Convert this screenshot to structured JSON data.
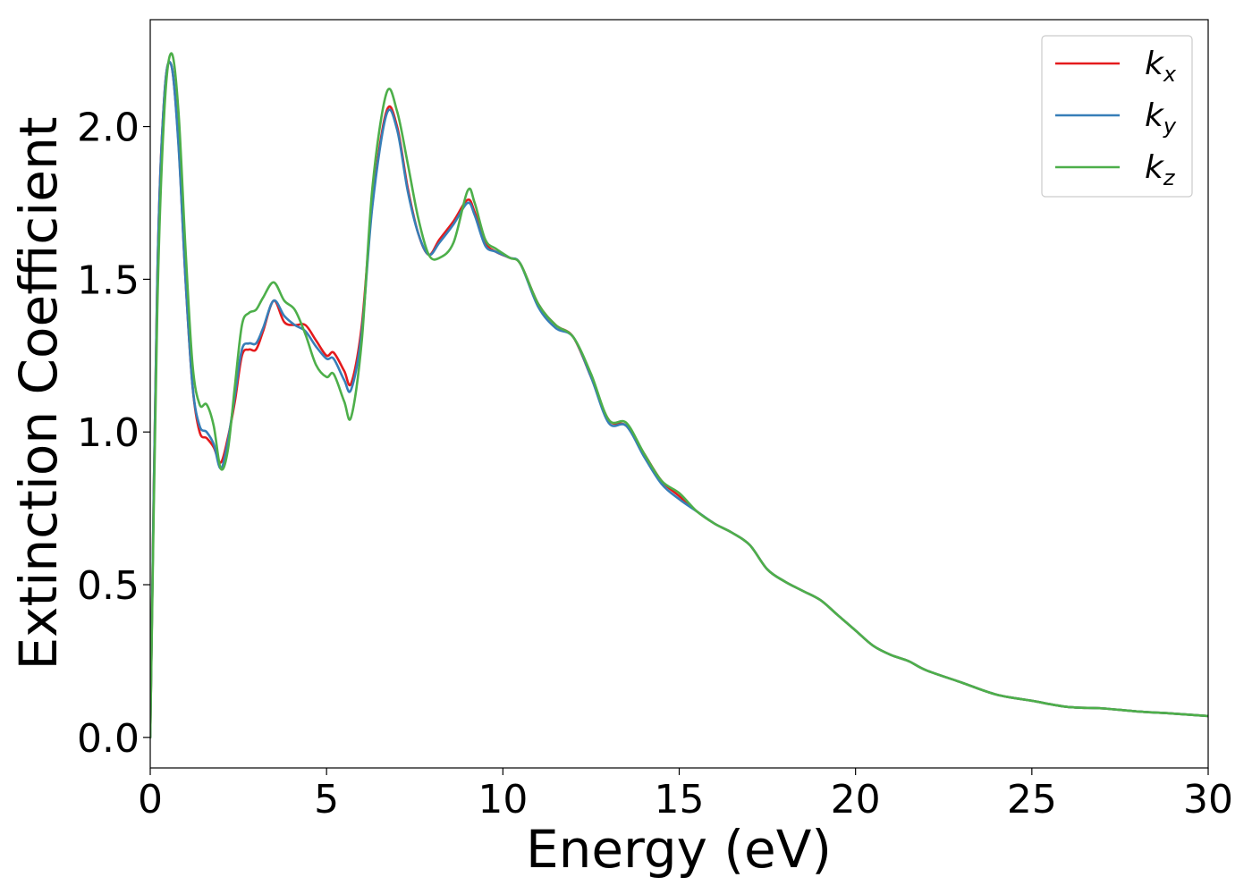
{
  "chart_data": {
    "type": "line",
    "xlabel": "Energy (eV)",
    "ylabel": "Extinction Coefficient",
    "xlim": [
      0,
      30
    ],
    "ylim": [
      -0.1,
      2.35
    ],
    "xticks": [
      0,
      5,
      10,
      15,
      20,
      25,
      30
    ],
    "xtick_labels": [
      "0",
      "5",
      "10",
      "15",
      "20",
      "25",
      "30"
    ],
    "yticks": [
      0.0,
      0.5,
      1.0,
      1.5,
      2.0
    ],
    "ytick_labels": [
      "0.0",
      "0.5",
      "1.0",
      "1.5",
      "2.0"
    ],
    "grid": false,
    "legend_position": "top-right",
    "series": [
      {
        "name": "k",
        "subscript": "x",
        "color": "#e41a1c",
        "x": [
          0,
          0.2,
          0.4,
          0.6,
          0.8,
          1.0,
          1.2,
          1.4,
          1.6,
          1.8,
          2.0,
          2.2,
          2.4,
          2.6,
          2.8,
          3.0,
          3.2,
          3.5,
          3.8,
          4.1,
          4.4,
          4.7,
          5.0,
          5.2,
          5.5,
          5.7,
          6.0,
          6.3,
          6.7,
          7.0,
          7.3,
          7.6,
          7.9,
          8.2,
          8.6,
          9.0,
          9.2,
          9.5,
          9.8,
          10.2,
          10.5,
          11.0,
          11.5,
          12.0,
          12.5,
          13.0,
          13.5,
          14.0,
          14.5,
          15.0,
          15.5,
          16.0,
          16.5,
          17.0,
          17.5,
          18.0,
          18.5,
          19.0,
          19.5,
          20.0,
          20.5,
          21.0,
          21.5,
          22.0,
          23.0,
          24.0,
          25.0,
          26.0,
          27.0,
          28.0,
          29.0,
          30.0
        ],
        "y": [
          0.0,
          1.5,
          2.1,
          2.2,
          1.95,
          1.5,
          1.15,
          1.0,
          0.98,
          0.95,
          0.9,
          0.98,
          1.1,
          1.25,
          1.27,
          1.27,
          1.33,
          1.43,
          1.36,
          1.35,
          1.35,
          1.3,
          1.25,
          1.26,
          1.2,
          1.16,
          1.35,
          1.75,
          2.05,
          2.0,
          1.8,
          1.65,
          1.58,
          1.63,
          1.69,
          1.76,
          1.72,
          1.62,
          1.59,
          1.57,
          1.55,
          1.42,
          1.35,
          1.31,
          1.18,
          1.04,
          1.02,
          0.93,
          0.84,
          0.79,
          0.74,
          0.7,
          0.67,
          0.63,
          0.55,
          0.51,
          0.48,
          0.45,
          0.4,
          0.35,
          0.3,
          0.27,
          0.25,
          0.22,
          0.18,
          0.14,
          0.12,
          0.1,
          0.095,
          0.085,
          0.078,
          0.07
        ]
      },
      {
        "name": "k",
        "subscript": "y",
        "color": "#377eb8",
        "x": [
          0,
          0.2,
          0.4,
          0.6,
          0.8,
          1.0,
          1.2,
          1.4,
          1.6,
          1.8,
          2.0,
          2.2,
          2.4,
          2.6,
          2.8,
          3.0,
          3.2,
          3.5,
          3.8,
          4.1,
          4.4,
          4.7,
          5.0,
          5.2,
          5.5,
          5.7,
          6.0,
          6.3,
          6.7,
          7.0,
          7.3,
          7.6,
          7.9,
          8.2,
          8.6,
          9.0,
          9.2,
          9.5,
          9.8,
          10.2,
          10.5,
          11.0,
          11.5,
          12.0,
          12.5,
          13.0,
          13.5,
          14.0,
          14.5,
          15.0,
          15.5,
          16.0,
          16.5,
          17.0,
          17.5,
          18.0,
          18.5,
          19.0,
          19.5,
          20.0,
          20.5,
          21.0,
          21.5,
          22.0,
          23.0,
          24.0,
          25.0,
          26.0,
          27.0,
          28.0,
          29.0,
          30.0
        ],
        "y": [
          0.0,
          1.5,
          2.1,
          2.2,
          1.94,
          1.5,
          1.15,
          1.02,
          1.0,
          0.96,
          0.88,
          0.97,
          1.12,
          1.27,
          1.29,
          1.29,
          1.34,
          1.43,
          1.38,
          1.35,
          1.33,
          1.28,
          1.24,
          1.24,
          1.17,
          1.14,
          1.33,
          1.74,
          2.04,
          1.99,
          1.79,
          1.65,
          1.58,
          1.62,
          1.68,
          1.75,
          1.71,
          1.61,
          1.59,
          1.57,
          1.55,
          1.41,
          1.34,
          1.31,
          1.18,
          1.03,
          1.02,
          0.92,
          0.83,
          0.78,
          0.74,
          0.7,
          0.67,
          0.63,
          0.55,
          0.51,
          0.48,
          0.45,
          0.4,
          0.35,
          0.3,
          0.27,
          0.25,
          0.22,
          0.18,
          0.14,
          0.12,
          0.1,
          0.095,
          0.085,
          0.078,
          0.07
        ]
      },
      {
        "name": "k",
        "subscript": "z",
        "color": "#4daf4a",
        "x": [
          0,
          0.2,
          0.4,
          0.6,
          0.8,
          1.0,
          1.2,
          1.4,
          1.6,
          1.8,
          2.0,
          2.2,
          2.4,
          2.6,
          2.8,
          3.0,
          3.2,
          3.5,
          3.8,
          4.1,
          4.4,
          4.7,
          5.0,
          5.2,
          5.5,
          5.7,
          6.0,
          6.3,
          6.7,
          7.0,
          7.3,
          7.6,
          7.9,
          8.2,
          8.6,
          9.0,
          9.2,
          9.5,
          9.8,
          10.2,
          10.5,
          11.0,
          11.5,
          12.0,
          12.5,
          13.0,
          13.5,
          14.0,
          14.5,
          15.0,
          15.5,
          16.0,
          16.5,
          17.0,
          17.5,
          18.0,
          18.5,
          19.0,
          19.5,
          20.0,
          20.5,
          21.0,
          21.5,
          22.0,
          23.0,
          24.0,
          25.0,
          26.0,
          27.0,
          28.0,
          29.0,
          30.0
        ],
        "y": [
          0.0,
          1.4,
          2.05,
          2.24,
          2.05,
          1.6,
          1.22,
          1.09,
          1.09,
          1.02,
          0.88,
          0.94,
          1.15,
          1.35,
          1.39,
          1.4,
          1.44,
          1.49,
          1.43,
          1.4,
          1.32,
          1.22,
          1.18,
          1.19,
          1.1,
          1.05,
          1.3,
          1.8,
          2.11,
          2.05,
          1.88,
          1.7,
          1.58,
          1.57,
          1.62,
          1.79,
          1.75,
          1.63,
          1.6,
          1.57,
          1.55,
          1.42,
          1.35,
          1.31,
          1.19,
          1.04,
          1.03,
          0.93,
          0.84,
          0.8,
          0.74,
          0.7,
          0.67,
          0.63,
          0.55,
          0.51,
          0.48,
          0.45,
          0.4,
          0.35,
          0.3,
          0.27,
          0.25,
          0.22,
          0.18,
          0.14,
          0.12,
          0.1,
          0.095,
          0.085,
          0.078,
          0.07
        ]
      }
    ]
  }
}
